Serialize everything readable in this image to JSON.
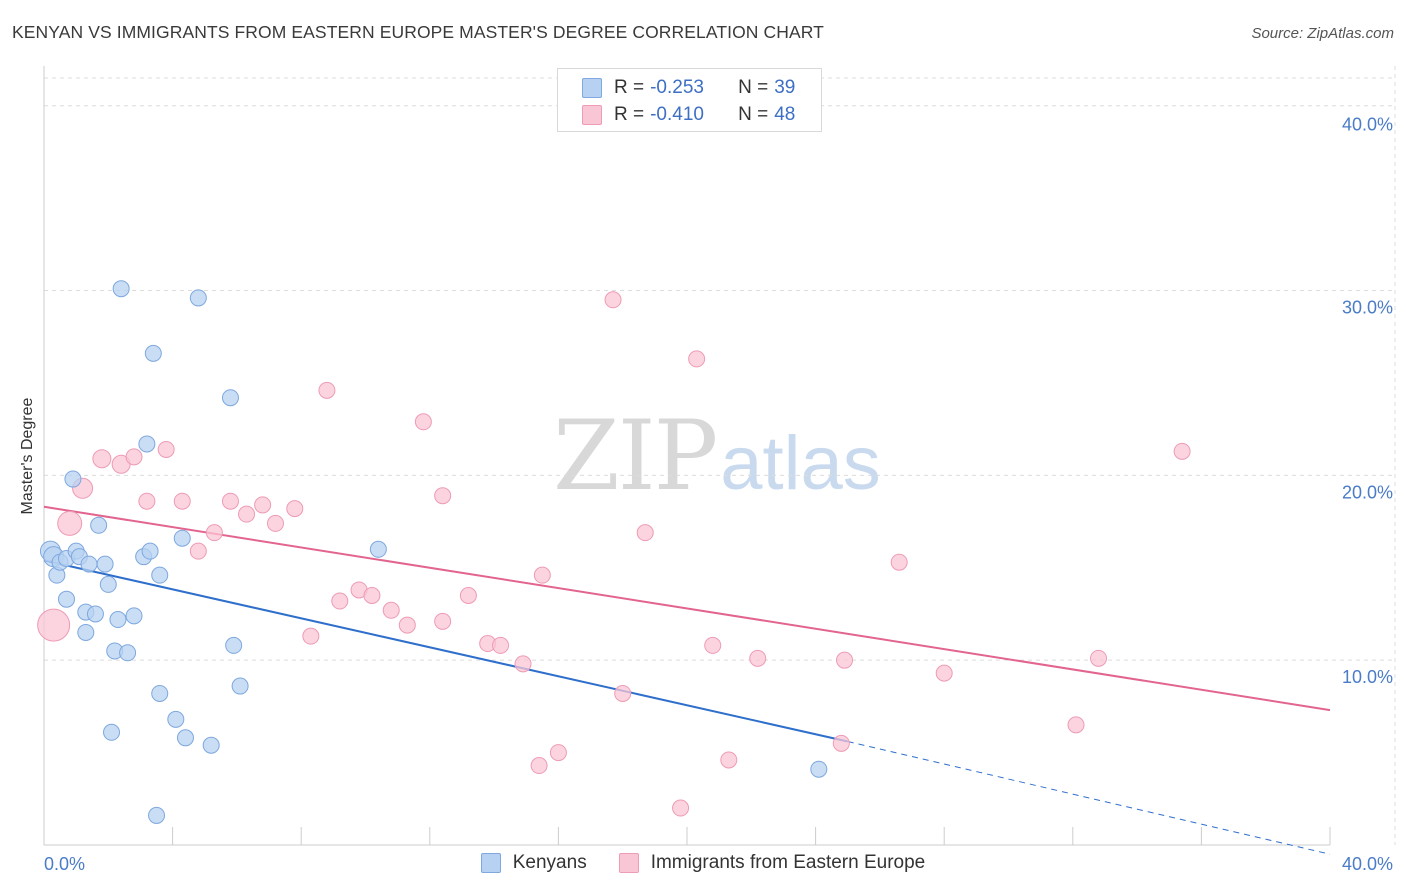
{
  "title": "KENYAN VS IMMIGRANTS FROM EASTERN EUROPE MASTER'S DEGREE CORRELATION CHART",
  "source": "Source: ZipAtlas.com",
  "watermark": {
    "zip": "ZIP",
    "atlas": "atlas"
  },
  "legend": {
    "rows": [
      {
        "r_label": "R =",
        "r_value": "-0.253",
        "n_label": "N =",
        "n_value": "39"
      },
      {
        "r_label": "R =",
        "r_value": "-0.410",
        "n_label": "N =",
        "n_value": "48"
      }
    ]
  },
  "bottom_legend": [
    "Kenyans",
    "Immigrants from Eastern Europe"
  ],
  "colors": {
    "blue_fill": "#b7d1f2",
    "blue_stroke": "#7ea8de",
    "blue_line": "#2f6fcc",
    "pink_fill": "#f9c6d5",
    "pink_stroke": "#ee9bb5",
    "pink_line": "#e2648f",
    "grid": "#dcdcdc",
    "axis_label": "#4a7cc7"
  },
  "chart_data": {
    "type": "scatter",
    "title": "KENYAN VS IMMIGRANTS FROM EASTERN EUROPE MASTER'S DEGREE CORRELATION CHART",
    "xlabel": "",
    "ylabel": "Master's Degree",
    "xlim": [
      0,
      40
    ],
    "ylim": [
      0,
      41.5
    ],
    "x_tick_labels": [
      "0.0%",
      "40.0%"
    ],
    "y_ticks": [
      10,
      20,
      30,
      40
    ],
    "y_tick_labels": [
      "10.0%",
      "20.0%",
      "30.0%",
      "40.0%"
    ],
    "grid": true,
    "series": [
      {
        "name": "Kenyans",
        "r": -0.253,
        "n": 39,
        "trend": {
          "x": [
            0,
            25
          ],
          "y": [
            15.4,
            5.6
          ],
          "dashed_to": [
            40,
            -0.5
          ]
        },
        "points": [
          {
            "x": 0.2,
            "y": 15.9,
            "s": 10
          },
          {
            "x": 0.3,
            "y": 15.6,
            "s": 10
          },
          {
            "x": 0.4,
            "y": 14.6,
            "s": 8
          },
          {
            "x": 0.5,
            "y": 15.3,
            "s": 8
          },
          {
            "x": 0.7,
            "y": 15.5,
            "s": 8
          },
          {
            "x": 0.7,
            "y": 13.3,
            "s": 8
          },
          {
            "x": 0.9,
            "y": 19.8,
            "s": 8
          },
          {
            "x": 1.0,
            "y": 15.9,
            "s": 8
          },
          {
            "x": 1.1,
            "y": 15.6,
            "s": 8
          },
          {
            "x": 1.3,
            "y": 12.6,
            "s": 8
          },
          {
            "x": 1.3,
            "y": 11.5,
            "s": 8
          },
          {
            "x": 1.4,
            "y": 15.2,
            "s": 8
          },
          {
            "x": 1.6,
            "y": 12.5,
            "s": 8
          },
          {
            "x": 1.7,
            "y": 17.3,
            "s": 8
          },
          {
            "x": 1.9,
            "y": 15.2,
            "s": 8
          },
          {
            "x": 2.0,
            "y": 14.1,
            "s": 8
          },
          {
            "x": 2.1,
            "y": 6.1,
            "s": 8
          },
          {
            "x": 2.2,
            "y": 10.5,
            "s": 8
          },
          {
            "x": 2.3,
            "y": 12.2,
            "s": 8
          },
          {
            "x": 2.4,
            "y": 30.1,
            "s": 8
          },
          {
            "x": 2.6,
            "y": 10.4,
            "s": 8
          },
          {
            "x": 2.8,
            "y": 12.4,
            "s": 8
          },
          {
            "x": 3.1,
            "y": 15.6,
            "s": 8
          },
          {
            "x": 3.2,
            "y": 21.7,
            "s": 8
          },
          {
            "x": 3.4,
            "y": 26.6,
            "s": 8
          },
          {
            "x": 3.5,
            "y": 1.6,
            "s": 8
          },
          {
            "x": 3.6,
            "y": 8.2,
            "s": 8
          },
          {
            "x": 3.6,
            "y": 14.6,
            "s": 8
          },
          {
            "x": 4.1,
            "y": 6.8,
            "s": 8
          },
          {
            "x": 4.3,
            "y": 16.6,
            "s": 8
          },
          {
            "x": 4.4,
            "y": 5.8,
            "s": 8
          },
          {
            "x": 4.8,
            "y": 29.6,
            "s": 8
          },
          {
            "x": 5.2,
            "y": 5.4,
            "s": 8
          },
          {
            "x": 5.8,
            "y": 24.2,
            "s": 8
          },
          {
            "x": 5.9,
            "y": 10.8,
            "s": 8
          },
          {
            "x": 6.1,
            "y": 8.6,
            "s": 8
          },
          {
            "x": 10.4,
            "y": 16.0,
            "s": 8
          },
          {
            "x": 24.1,
            "y": 4.1,
            "s": 8
          },
          {
            "x": 3.3,
            "y": 15.9,
            "s": 8
          }
        ]
      },
      {
        "name": "Immigrants from Eastern Europe",
        "r": -0.41,
        "n": 48,
        "trend": {
          "x": [
            0,
            40
          ],
          "y": [
            18.3,
            7.3
          ]
        },
        "points": [
          {
            "x": 0.3,
            "y": 11.9,
            "s": 16
          },
          {
            "x": 0.8,
            "y": 17.4,
            "s": 12
          },
          {
            "x": 1.2,
            "y": 19.3,
            "s": 10
          },
          {
            "x": 1.8,
            "y": 20.9,
            "s": 9
          },
          {
            "x": 2.4,
            "y": 20.6,
            "s": 9
          },
          {
            "x": 2.8,
            "y": 21.0,
            "s": 8
          },
          {
            "x": 3.2,
            "y": 18.6,
            "s": 8
          },
          {
            "x": 3.8,
            "y": 21.4,
            "s": 8
          },
          {
            "x": 4.3,
            "y": 18.6,
            "s": 8
          },
          {
            "x": 4.8,
            "y": 15.9,
            "s": 8
          },
          {
            "x": 5.3,
            "y": 16.9,
            "s": 8
          },
          {
            "x": 5.8,
            "y": 18.6,
            "s": 8
          },
          {
            "x": 6.3,
            "y": 17.9,
            "s": 8
          },
          {
            "x": 6.8,
            "y": 18.4,
            "s": 8
          },
          {
            "x": 7.2,
            "y": 17.4,
            "s": 8
          },
          {
            "x": 7.8,
            "y": 18.2,
            "s": 8
          },
          {
            "x": 8.3,
            "y": 11.3,
            "s": 8
          },
          {
            "x": 8.8,
            "y": 24.6,
            "s": 8
          },
          {
            "x": 9.2,
            "y": 13.2,
            "s": 8
          },
          {
            "x": 9.8,
            "y": 13.8,
            "s": 8
          },
          {
            "x": 10.2,
            "y": 13.5,
            "s": 8
          },
          {
            "x": 10.8,
            "y": 12.7,
            "s": 8
          },
          {
            "x": 11.3,
            "y": 11.9,
            "s": 8
          },
          {
            "x": 11.8,
            "y": 22.9,
            "s": 8
          },
          {
            "x": 12.4,
            "y": 12.1,
            "s": 8
          },
          {
            "x": 12.4,
            "y": 18.9,
            "s": 8
          },
          {
            "x": 13.2,
            "y": 13.5,
            "s": 8
          },
          {
            "x": 13.8,
            "y": 10.9,
            "s": 8
          },
          {
            "x": 14.2,
            "y": 10.8,
            "s": 8
          },
          {
            "x": 14.9,
            "y": 9.8,
            "s": 8
          },
          {
            "x": 15.4,
            "y": 4.3,
            "s": 8
          },
          {
            "x": 15.5,
            "y": 14.6,
            "s": 8
          },
          {
            "x": 16.0,
            "y": 5.0,
            "s": 8
          },
          {
            "x": 17.7,
            "y": 29.5,
            "s": 8
          },
          {
            "x": 18.0,
            "y": 8.2,
            "s": 8
          },
          {
            "x": 18.7,
            "y": 16.9,
            "s": 8
          },
          {
            "x": 19.8,
            "y": 2.0,
            "s": 8
          },
          {
            "x": 20.3,
            "y": 26.3,
            "s": 8
          },
          {
            "x": 20.8,
            "y": 10.8,
            "s": 8
          },
          {
            "x": 21.3,
            "y": 4.6,
            "s": 8
          },
          {
            "x": 22.2,
            "y": 10.1,
            "s": 8
          },
          {
            "x": 24.8,
            "y": 5.5,
            "s": 8
          },
          {
            "x": 24.9,
            "y": 10.0,
            "s": 8
          },
          {
            "x": 26.6,
            "y": 15.3,
            "s": 8
          },
          {
            "x": 28.0,
            "y": 9.3,
            "s": 8
          },
          {
            "x": 32.1,
            "y": 6.5,
            "s": 8
          },
          {
            "x": 32.8,
            "y": 10.1,
            "s": 8
          },
          {
            "x": 35.4,
            "y": 21.3,
            "s": 8
          }
        ]
      }
    ]
  }
}
